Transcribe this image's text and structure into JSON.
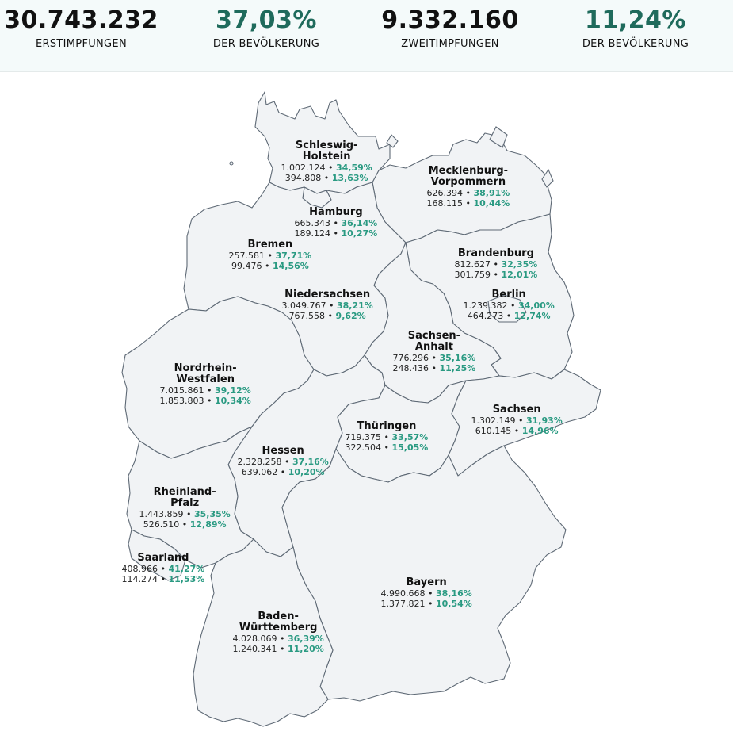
{
  "summary": [
    {
      "value": "30.743.232",
      "label": "ERSTIMPFUNGEN",
      "accent": false
    },
    {
      "value": "37,03%",
      "label": "DER BEVÖLKERUNG",
      "accent": true
    },
    {
      "value": "9.332.160",
      "label": "ZWEITIMPFUNGEN",
      "accent": false
    },
    {
      "value": "11,24%",
      "label": "DER BEVÖLKERUNG",
      "accent": true
    }
  ],
  "colors": {
    "accent": "#2a9a82",
    "accent_dark": "#1f6b5c",
    "region_fill": "#f1f3f5",
    "border": "#5e6975",
    "header_bg": "#f4fafa"
  },
  "states": [
    {
      "id": "sh",
      "name1": "Schleswig-",
      "name2": "Holstein",
      "first": "1.002.124",
      "first_pct": "34,59%",
      "second": "394.808",
      "second_pct": "13,63%"
    },
    {
      "id": "mv",
      "name1": "Mecklenburg-",
      "name2": "Vorpommern",
      "first": "626.394",
      "first_pct": "38,91%",
      "second": "168.115",
      "second_pct": "10,44%"
    },
    {
      "id": "hh",
      "name1": "Hamburg",
      "name2": "",
      "first": "665.343",
      "first_pct": "36,14%",
      "second": "189.124",
      "second_pct": "10,27%"
    },
    {
      "id": "hb",
      "name1": "Bremen",
      "name2": "",
      "first": "257.581",
      "first_pct": "37,71%",
      "second": "99.476",
      "second_pct": "14,56%"
    },
    {
      "id": "bb",
      "name1": "Brandenburg",
      "name2": "",
      "first": "812.627",
      "first_pct": "32,35%",
      "second": "301.759",
      "second_pct": "12,01%"
    },
    {
      "id": "ni",
      "name1": "Niedersachsen",
      "name2": "",
      "first": "3.049.767",
      "first_pct": "38,21%",
      "second": "767.558",
      "second_pct": "9,62%"
    },
    {
      "id": "be",
      "name1": "Berlin",
      "name2": "",
      "first": "1.239.382",
      "first_pct": "34,00%",
      "second": "464.273",
      "second_pct": "12,74%"
    },
    {
      "id": "st",
      "name1": "Sachsen-",
      "name2": "Anhalt",
      "first": "776.296",
      "first_pct": "35,16%",
      "second": "248.436",
      "second_pct": "11,25%"
    },
    {
      "id": "nw",
      "name1": "Nordrhein-",
      "name2": "Westfalen",
      "first": "7.015.861",
      "first_pct": "39,12%",
      "second": "1.853.803",
      "second_pct": "10,34%"
    },
    {
      "id": "sn",
      "name1": "Sachsen",
      "name2": "",
      "first": "1.302.149",
      "first_pct": "31,93%",
      "second": "610.145",
      "second_pct": "14,96%"
    },
    {
      "id": "th",
      "name1": "Thüringen",
      "name2": "",
      "first": "719.375",
      "first_pct": "33,57%",
      "second": "322.504",
      "second_pct": "15,05%"
    },
    {
      "id": "he",
      "name1": "Hessen",
      "name2": "",
      "first": "2.328.258",
      "first_pct": "37,16%",
      "second": "639.062",
      "second_pct": "10,20%"
    },
    {
      "id": "rp",
      "name1": "Rheinland-",
      "name2": "Pfalz",
      "first": "1.443.859",
      "first_pct": "35,35%",
      "second": "526.510",
      "second_pct": "12,89%"
    },
    {
      "id": "sl",
      "name1": "Saarland",
      "name2": "",
      "first": "408.966",
      "first_pct": "41,27%",
      "second": "114.274",
      "second_pct": "11,53%"
    },
    {
      "id": "by",
      "name1": "Bayern",
      "name2": "",
      "first": "4.990.668",
      "first_pct": "38,16%",
      "second": "1.377.821",
      "second_pct": "10,54%"
    },
    {
      "id": "bw",
      "name1": "Baden-",
      "name2": "Württemberg",
      "first": "4.028.069",
      "first_pct": "36,39%",
      "second": "1.240.341",
      "second_pct": "11,20%"
    }
  ]
}
